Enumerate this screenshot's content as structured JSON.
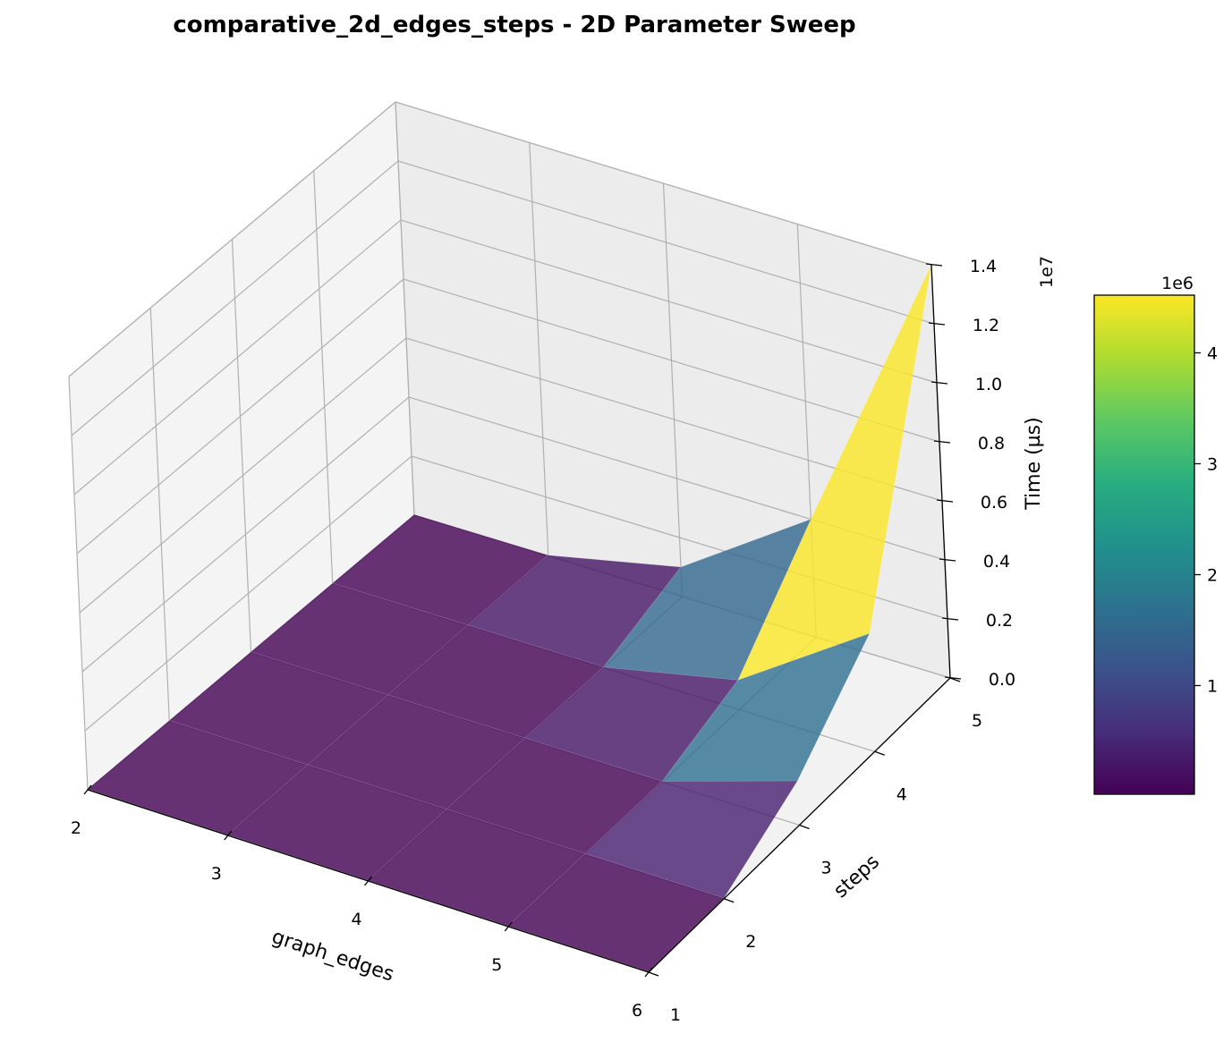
{
  "chart_data": {
    "type": "surface3d",
    "title": "comparative_2d_edges_steps - 2D Parameter Sweep",
    "xlabel": "graph_edges",
    "ylabel": "steps",
    "zlabel": "Time (µs)",
    "x": [
      2,
      3,
      4,
      5,
      6
    ],
    "y": [
      1,
      2,
      3,
      4,
      5
    ],
    "z_by_steps": [
      [
        20000,
        20000,
        20000,
        20000,
        20000
      ],
      [
        20000,
        20000,
        20000,
        20000,
        20000
      ],
      [
        20000,
        20000,
        20000,
        20000,
        1500000
      ],
      [
        20000,
        20000,
        20000,
        1000000,
        4000000
      ],
      [
        20000,
        20000,
        1000000,
        4000000,
        14000000
      ]
    ],
    "x_ticks": [
      "2",
      "3",
      "4",
      "5",
      "6"
    ],
    "y_ticks": [
      "1",
      "2",
      "3",
      "4",
      "5"
    ],
    "z_ticks": [
      "0.0",
      "0.2",
      "0.4",
      "0.6",
      "0.8",
      "1.0",
      "1.2",
      "1.4"
    ],
    "z_tick_values": [
      0,
      2000000,
      4000000,
      6000000,
      8000000,
      10000000,
      12000000,
      14000000
    ],
    "z_offset_label": "1e7",
    "zlim": [
      0,
      14000000
    ],
    "colormap": "viridis",
    "colorbar": {
      "offset_label": "1e6",
      "ticks": [
        "1",
        "2",
        "3",
        "4"
      ],
      "tick_values": [
        1000000,
        2000000,
        3000000,
        4000000
      ],
      "range": [
        20000,
        4520000
      ]
    },
    "grid": true,
    "surface_alpha": 0.8
  }
}
